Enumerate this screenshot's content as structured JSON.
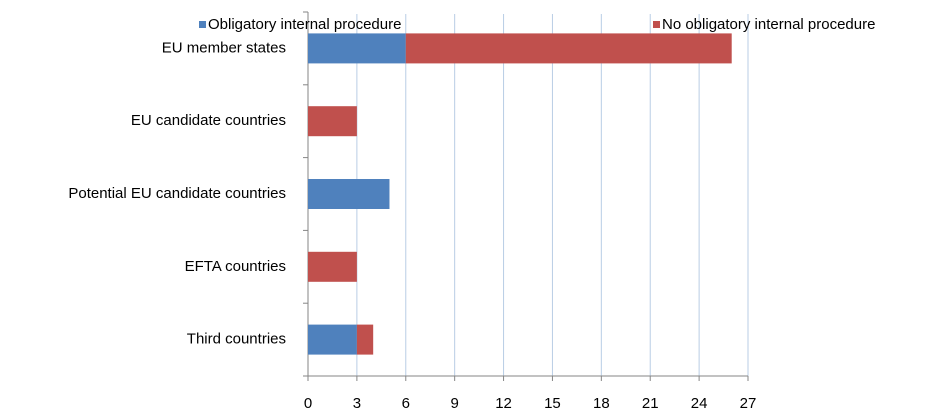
{
  "chart_data": {
    "type": "stacked_barh",
    "categories": [
      "EU member states",
      "EU candidate countries",
      "Potential EU candidate countries",
      "EFTA countries",
      "Third countries"
    ],
    "series": [
      {
        "name": "Obligatory internal procedure",
        "color": "#4f81bd",
        "values": [
          6,
          0,
          5,
          0,
          3
        ]
      },
      {
        "name": "No obligatory  internal procedure",
        "color": "#c0504d",
        "values": [
          20,
          3,
          0,
          3,
          1
        ]
      }
    ],
    "xlim": [
      0,
      27
    ],
    "xticks": [
      0,
      3,
      6,
      9,
      12,
      15,
      18,
      21,
      24,
      27
    ],
    "grid": true,
    "legend": "top"
  }
}
